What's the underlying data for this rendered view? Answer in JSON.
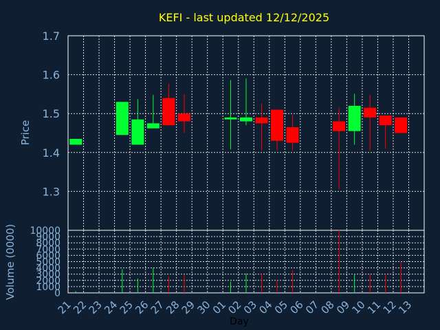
{
  "chart_data": [
    {
      "type": "candlestick",
      "title": "KEFI - last updated 12/12/2025",
      "ylabel": "Price",
      "ylim": [
        1.2,
        1.7
      ],
      "yticks": [
        1.3,
        1.4,
        1.5,
        1.6,
        1.7
      ],
      "grid": true,
      "up_color": "#00ff33",
      "down_color": "#ff0000",
      "candles": [
        {
          "day": "21",
          "open": 1.42,
          "close": 1.435,
          "high": 1.435,
          "low": 1.42
        },
        {
          "day": "24",
          "open": 1.445,
          "close": 1.53,
          "high": 1.53,
          "low": 1.445
        },
        {
          "day": "25",
          "open": 1.42,
          "close": 1.485,
          "high": 1.537,
          "low": 1.42
        },
        {
          "day": "26",
          "open": 1.462,
          "close": 1.475,
          "high": 1.548,
          "low": 1.462
        },
        {
          "day": "27",
          "open": 1.54,
          "close": 1.47,
          "high": 1.577,
          "low": 1.47
        },
        {
          "day": "28",
          "open": 1.5,
          "close": 1.48,
          "high": 1.55,
          "low": 1.45
        },
        {
          "day": "01",
          "open": 1.485,
          "close": 1.49,
          "high": 1.586,
          "low": 1.408
        },
        {
          "day": "02",
          "open": 1.48,
          "close": 1.49,
          "high": 1.59,
          "low": 1.47
        },
        {
          "day": "03",
          "open": 1.49,
          "close": 1.475,
          "high": 1.526,
          "low": 1.405
        },
        {
          "day": "04",
          "open": 1.51,
          "close": 1.43,
          "high": 1.51,
          "low": 1.405
        },
        {
          "day": "05",
          "open": 1.465,
          "close": 1.425,
          "high": 1.497,
          "low": 1.405
        },
        {
          "day": "08",
          "open": 1.48,
          "close": 1.455,
          "high": 1.515,
          "low": 1.305
        },
        {
          "day": "09",
          "open": 1.455,
          "close": 1.52,
          "high": 1.551,
          "low": 1.42
        },
        {
          "day": "10",
          "open": 1.515,
          "close": 1.49,
          "high": 1.548,
          "low": 1.405
        },
        {
          "day": "11",
          "open": 1.495,
          "close": 1.47,
          "high": 1.495,
          "low": 1.41
        },
        {
          "day": "12",
          "open": 1.49,
          "close": 1.45,
          "high": 1.49,
          "low": 1.45
        }
      ]
    },
    {
      "type": "bar",
      "ylabel": "Volume (0000)",
      "xlabel": "Day",
      "ylim": [
        0,
        10000
      ],
      "yticks": [
        0,
        1000,
        2000,
        3000,
        4000,
        5000,
        6000,
        7000,
        8000,
        9000,
        10000
      ],
      "grid": true,
      "categories": [
        "21",
        "22",
        "23",
        "24",
        "25",
        "26",
        "27",
        "28",
        "29",
        "30",
        "01",
        "02",
        "03",
        "04",
        "05",
        "06",
        "07",
        "08",
        "09",
        "10",
        "11",
        "12",
        "13"
      ],
      "bars": [
        {
          "day": "21",
          "value": 300,
          "color": "#00ff33"
        },
        {
          "day": "24",
          "value": 3800,
          "color": "#00ff33"
        },
        {
          "day": "25",
          "value": 2300,
          "color": "#00ff33"
        },
        {
          "day": "26",
          "value": 4000,
          "color": "#00ff33"
        },
        {
          "day": "27",
          "value": 2600,
          "color": "#ff0000"
        },
        {
          "day": "28",
          "value": 2900,
          "color": "#ff0000"
        },
        {
          "day": "01",
          "value": 1800,
          "color": "#00ff33"
        },
        {
          "day": "02",
          "value": 3100,
          "color": "#00ff33"
        },
        {
          "day": "03",
          "value": 3100,
          "color": "#ff0000"
        },
        {
          "day": "04",
          "value": 2100,
          "color": "#ff0000"
        },
        {
          "day": "05",
          "value": 3600,
          "color": "#ff0000"
        },
        {
          "day": "08",
          "value": 10000,
          "color": "#ff0000"
        },
        {
          "day": "09",
          "value": 3000,
          "color": "#00ff33"
        },
        {
          "day": "10",
          "value": 3000,
          "color": "#ff0000"
        },
        {
          "day": "11",
          "value": 3000,
          "color": "#ff0000"
        },
        {
          "day": "12",
          "value": 5000,
          "color": "#ff0000"
        }
      ]
    }
  ]
}
